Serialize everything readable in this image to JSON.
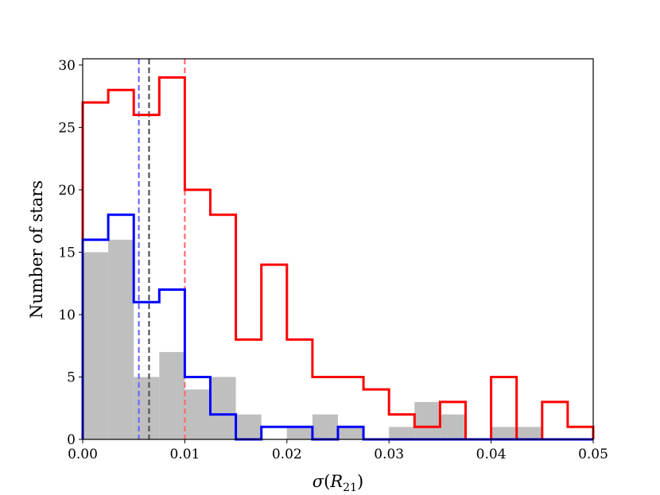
{
  "chart_data": {
    "type": "histogram",
    "xlabel_symbol": "σ",
    "xlabel_open": "(",
    "xlabel_var": "R",
    "xlabel_sub": "21",
    "xlabel_close": ")",
    "ylabel": "Number of stars",
    "xlim": [
      0.0,
      0.05
    ],
    "ylim": [
      0,
      30.5
    ],
    "xticks": [
      0.0,
      0.01,
      0.02,
      0.03,
      0.04,
      0.05
    ],
    "xtick_labels": [
      "0.00",
      "0.01",
      "0.02",
      "0.03",
      "0.04",
      "0.05"
    ],
    "yticks": [
      0,
      5,
      10,
      15,
      20,
      25,
      30
    ],
    "ytick_labels": [
      "0",
      "5",
      "10",
      "15",
      "20",
      "25",
      "30"
    ],
    "grid": false,
    "bin_edges": [
      0.0,
      0.0025,
      0.005,
      0.0075,
      0.01,
      0.0125,
      0.015,
      0.0175,
      0.02,
      0.0225,
      0.025,
      0.0275,
      0.03,
      0.0325,
      0.035,
      0.0375,
      0.04,
      0.0425,
      0.045,
      0.0475,
      0.05
    ],
    "series": [
      {
        "style": "filled",
        "color": "#bfbfbf",
        "counts": [
          15,
          16,
          5,
          7,
          4,
          5,
          2,
          0,
          1,
          2,
          1,
          0,
          1,
          3,
          2,
          0,
          1,
          1,
          0,
          0
        ]
      },
      {
        "style": "step",
        "color": "#ff0000",
        "counts": [
          27,
          28,
          26,
          29,
          20,
          18,
          8,
          14,
          8,
          5,
          5,
          4,
          2,
          1,
          3,
          0,
          5,
          0,
          3,
          1
        ]
      },
      {
        "style": "step",
        "color": "#0000ff",
        "counts": [
          16,
          18,
          11,
          12,
          5,
          2,
          0,
          1,
          1,
          0,
          1,
          0,
          0,
          0,
          0,
          0,
          0,
          0,
          0,
          0
        ]
      }
    ],
    "vlines": [
      {
        "x": 0.0055,
        "color": "#6b6bff",
        "style": "dashed"
      },
      {
        "x": 0.0065,
        "color": "#555555",
        "style": "dashed"
      },
      {
        "x": 0.01,
        "color": "#ff6b6b",
        "style": "dashed"
      }
    ]
  }
}
